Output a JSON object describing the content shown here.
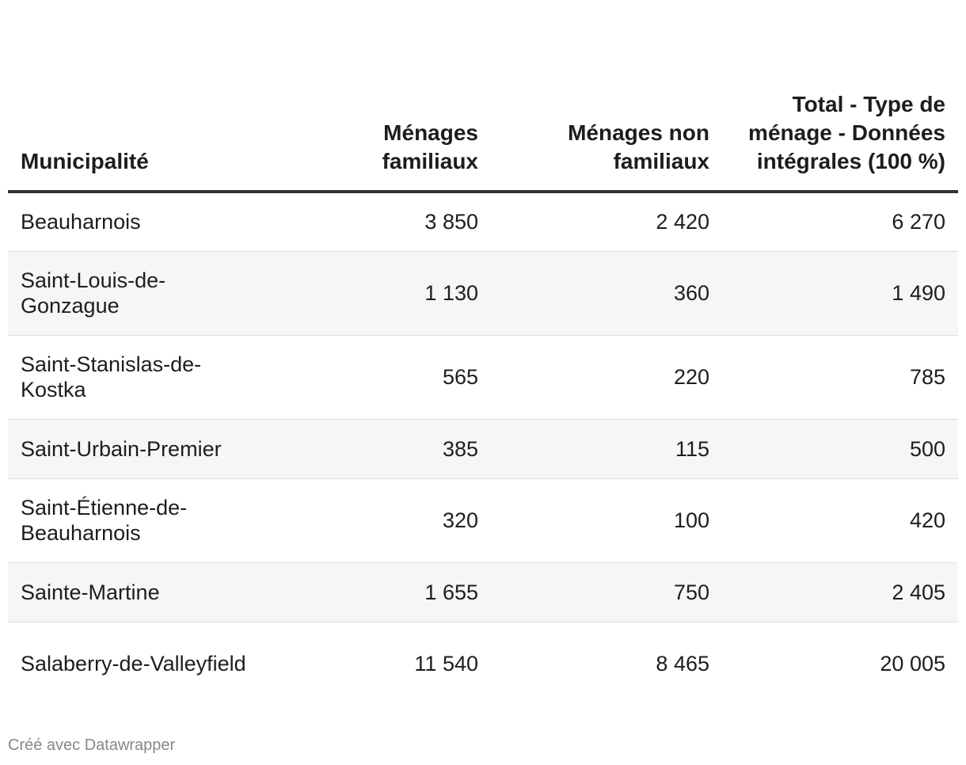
{
  "chart_data": {
    "type": "table",
    "columns": [
      "Municipalité",
      "Ménages familiaux",
      "Ménages non familiaux",
      "Total - Type de ménage - Données intégrales (100 %)"
    ],
    "rows": [
      {
        "municipalite": "Beauharnois",
        "familiaux": "3 850",
        "non_familiaux": "2 420",
        "total": "6 270"
      },
      {
        "municipalite": "Saint-Louis-de-Gonzague",
        "familiaux": "1 130",
        "non_familiaux": "360",
        "total": "1 490"
      },
      {
        "municipalite": "Saint-Stanislas-de-Kostka",
        "familiaux": "565",
        "non_familiaux": "220",
        "total": "785"
      },
      {
        "municipalite": "Saint-Urbain-Premier",
        "familiaux": "385",
        "non_familiaux": "115",
        "total": "500"
      },
      {
        "municipalite": "Saint-Étienne-de-Beauharnois",
        "familiaux": "320",
        "non_familiaux": "100",
        "total": "420"
      },
      {
        "municipalite": "Sainte-Martine",
        "familiaux": "1 655",
        "non_familiaux": "750",
        "total": "2 405"
      },
      {
        "municipalite": "Salaberry-de-Valleyfield",
        "familiaux": "11 540",
        "non_familiaux": "8 465",
        "total": "20 005"
      }
    ]
  },
  "credit": "Créé avec Datawrapper"
}
